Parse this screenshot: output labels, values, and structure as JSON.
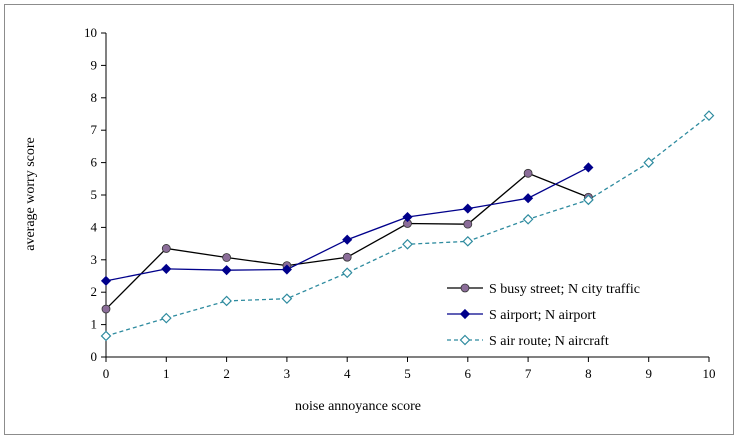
{
  "chart_data": {
    "type": "line",
    "title": "",
    "xlabel": "noise annoyance score",
    "ylabel": "average worry score",
    "xlim": [
      0,
      10
    ],
    "ylim": [
      0,
      10
    ],
    "x_ticks": [
      "0",
      "1",
      "2",
      "3",
      "4",
      "5",
      "6",
      "7",
      "8",
      "9",
      "10"
    ],
    "y_ticks": [
      "0",
      "1",
      "2",
      "3",
      "4",
      "5",
      "6",
      "7",
      "8",
      "9",
      "10"
    ],
    "grid": false,
    "legend_position": "bottom-right",
    "series": [
      {
        "name": "S busy street;  N city traffic",
        "color": "#000000",
        "marker": "circle",
        "marker_color": "#8b6d99",
        "dash": "solid",
        "x": [
          0,
          1,
          2,
          3,
          4,
          5,
          6,
          7,
          8
        ],
        "y": [
          1.48,
          3.35,
          3.07,
          2.82,
          3.08,
          4.12,
          4.1,
          5.67,
          4.93
        ]
      },
      {
        "name": "S airport;  N airport",
        "color": "#00008b",
        "marker": "diamond",
        "marker_color": "#00008b",
        "dash": "solid",
        "x": [
          0,
          1,
          2,
          3,
          4,
          5,
          6,
          7,
          8
        ],
        "y": [
          2.35,
          2.72,
          2.68,
          2.7,
          3.62,
          4.32,
          4.58,
          4.9,
          5.85
        ]
      },
      {
        "name": "S air route;  N aircraft",
        "color": "#2e8b9f",
        "marker": "diamond-open",
        "marker_color": "#ffffff",
        "dash": "dashed",
        "x": [
          0,
          1,
          2,
          3,
          4,
          5,
          6,
          7,
          8,
          9,
          10
        ],
        "y": [
          0.65,
          1.2,
          1.73,
          1.8,
          2.6,
          3.48,
          3.57,
          4.25,
          4.85,
          6.0,
          7.45
        ]
      }
    ]
  }
}
